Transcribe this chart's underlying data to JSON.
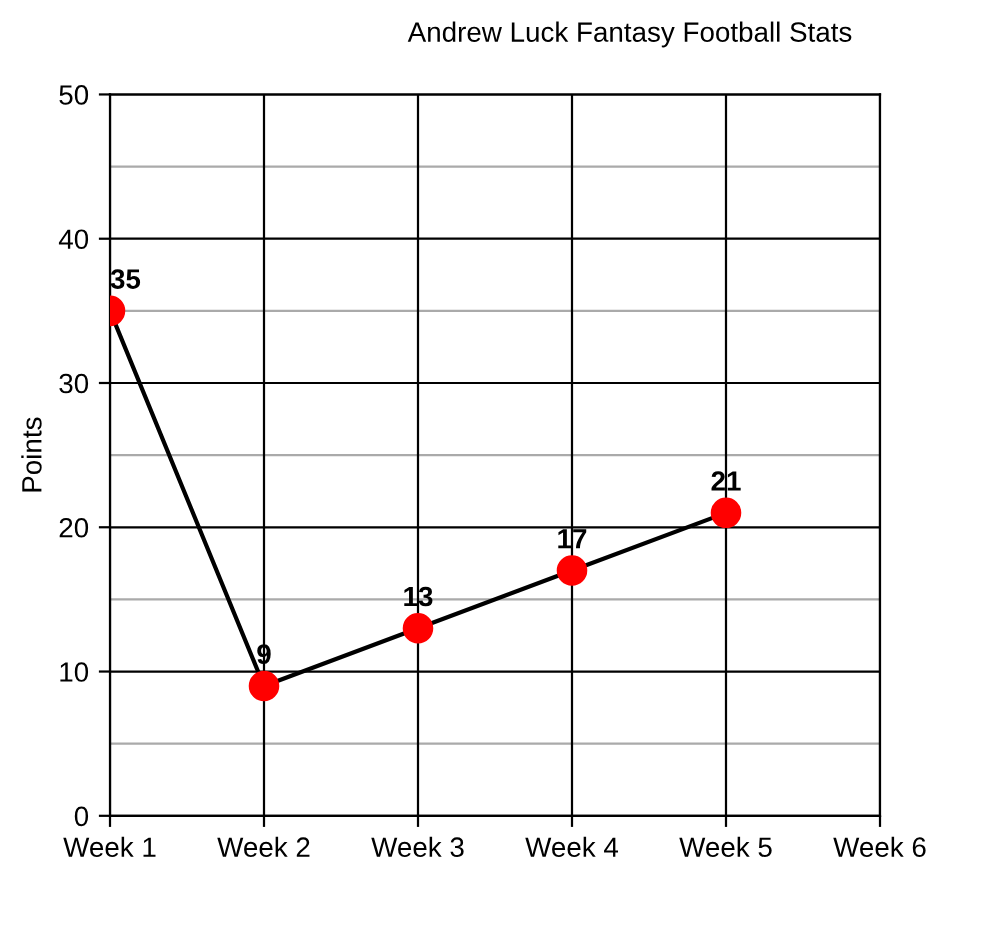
{
  "chart_data": {
    "type": "line",
    "title": "Andrew Luck Fantasy Football Stats",
    "ylabel": "Points",
    "categories": [
      "Week 1",
      "Week 2",
      "Week 3",
      "Week 4",
      "Week 5",
      "Week 6"
    ],
    "series": [
      {
        "color": "#ff0000",
        "values": [
          35,
          9,
          13,
          17,
          21,
          null
        ]
      }
    ],
    "ylim": [
      0,
      50
    ],
    "yticks": [
      0,
      {
        "value": 5,
        "label": null
      },
      10,
      {
        "value": 15,
        "label": null
      },
      20,
      {
        "value": 25,
        "label": null
      },
      30,
      {
        "value": 35,
        "label": null
      },
      40,
      {
        "value": 45,
        "label": null
      },
      50
    ],
    "grid": true,
    "marker": "circle",
    "line_style": "solid",
    "data_labels": true
  }
}
